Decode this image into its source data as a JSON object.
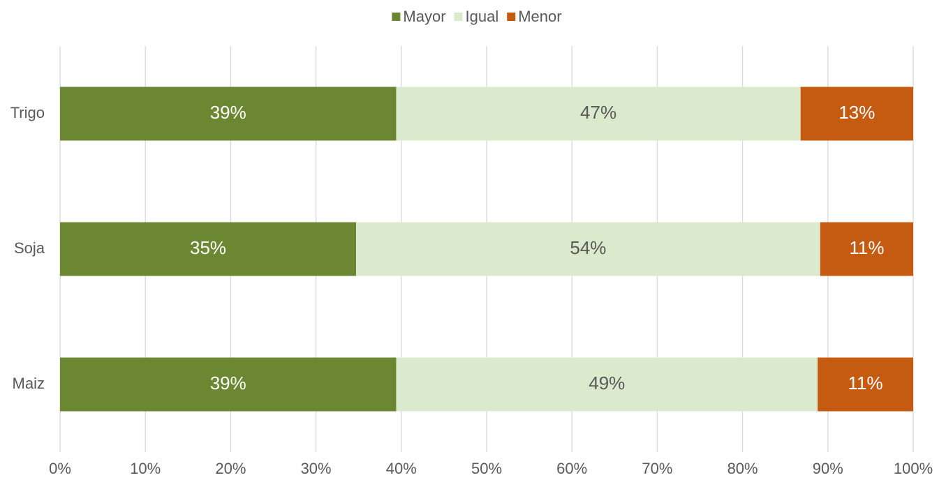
{
  "chart_data": {
    "type": "stacked_barh",
    "categories": [
      "Trigo",
      "Soja",
      "Maiz"
    ],
    "series": [
      {
        "name": "Mayor",
        "color": "#6b8731",
        "label_color": "#ffffff",
        "values": [
          39.4,
          34.7,
          39.4
        ],
        "value_labels": [
          "39%",
          "35%",
          "39%"
        ]
      },
      {
        "name": "Igual",
        "color": "#dbe9cc",
        "label_color": "#595959",
        "values": [
          47.4,
          54.4,
          49.4
        ],
        "value_labels": [
          "47%",
          "54%",
          "49%"
        ]
      },
      {
        "name": "Menor",
        "color": "#c55a11",
        "label_color": "#ffffff",
        "values": [
          13.2,
          10.9,
          11.2
        ],
        "value_labels": [
          "13%",
          "11%",
          "11%"
        ]
      }
    ],
    "xlim": [
      0,
      100
    ],
    "xticks": [
      {
        "value": 0,
        "label": "0%"
      },
      {
        "value": 10,
        "label": "10%"
      },
      {
        "value": 20,
        "label": "20%"
      },
      {
        "value": 30,
        "label": "30%"
      },
      {
        "value": 40,
        "label": "40%"
      },
      {
        "value": 50,
        "label": "50%"
      },
      {
        "value": 60,
        "label": "60%"
      },
      {
        "value": 70,
        "label": "70%"
      },
      {
        "value": 80,
        "label": "80%"
      },
      {
        "value": 90,
        "label": "90%"
      },
      {
        "value": 100,
        "label": "100%"
      }
    ],
    "grid": true,
    "legend": "top"
  }
}
